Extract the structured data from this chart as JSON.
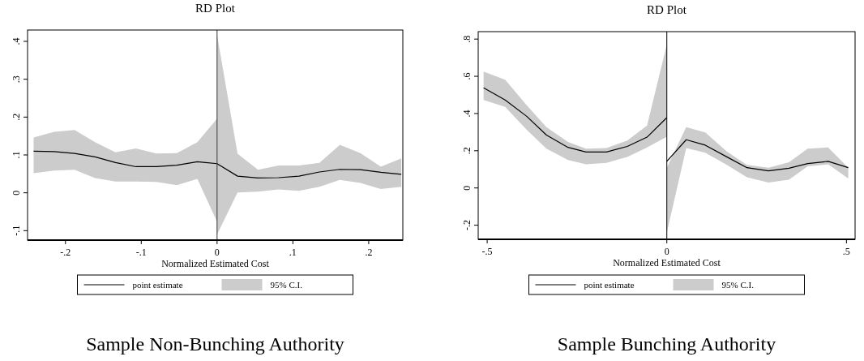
{
  "chart_data": [
    {
      "type": "line",
      "title": "RD Plot",
      "xlabel": "Normalized Estimated Cost",
      "annotations": [
        "95% C.I.",
        "Sample Non-Bunching Authority"
      ],
      "legend": "bottom",
      "xlim": [
        -0.25,
        0.245
      ],
      "ylim": [
        -0.125,
        0.43
      ],
      "xticks": [
        {
          "value": -0.2,
          "label": "-.2"
        },
        {
          "value": -0.1,
          "label": "-.1"
        },
        0,
        {
          "value": 0.1,
          "label": ".1"
        },
        {
          "value": 0.2,
          "label": ".2"
        }
      ],
      "yticks": [
        {
          "value": -0.1,
          "label": "-.1"
        },
        0,
        {
          "value": 0.1,
          "label": ".1"
        },
        {
          "value": 0.2,
          "label": ".2"
        },
        {
          "value": 0.3,
          "label": ".3"
        },
        {
          "value": 0.4,
          "label": ".4"
        }
      ],
      "ref_lines": [
        {
          "axis": "x",
          "value": 0,
          "color": "#333333"
        }
      ],
      "series": [
        {
          "name": "point estimate",
          "color": "#000000",
          "x": [
            -0.242,
            -0.215,
            -0.188,
            -0.161,
            -0.134,
            -0.107,
            -0.08,
            -0.053,
            -0.026,
            0
          ],
          "values": [
            0.11,
            0.109,
            0.104,
            0.095,
            0.08,
            0.069,
            0.069,
            0.073,
            0.082,
            0.077
          ],
          "lower": [
            0.052,
            0.059,
            0.061,
            0.039,
            0.03,
            0.03,
            0.029,
            0.02,
            0.037,
            -0.077
          ],
          "upper": [
            0.146,
            0.161,
            0.166,
            0.134,
            0.107,
            0.117,
            0.104,
            0.105,
            0.134,
            0.196
          ]
        },
        {
          "color": "#000000",
          "x": [
            0,
            0.027,
            0.054,
            0.081,
            0.108,
            0.135,
            0.162,
            0.189,
            0.216,
            0.243
          ],
          "values": [
            0.077,
            0.044,
            0.039,
            0.04,
            0.044,
            0.055,
            0.062,
            0.061,
            0.054,
            0.049
          ],
          "lower": [
            -0.11,
            0.001,
            0.003,
            0.009,
            0.005,
            0.016,
            0.034,
            0.026,
            0.01,
            0.016
          ],
          "upper": [
            0.417,
            0.103,
            0.061,
            0.072,
            0.072,
            0.079,
            0.127,
            0.105,
            0.069,
            0.091
          ]
        }
      ]
    },
    {
      "type": "line",
      "title": "RD Plot",
      "xlabel": "Normalized Estimated Cost",
      "annotations": [
        "95% C.I.",
        "Sample Bunching Authority"
      ],
      "legend": "bottom",
      "xlim": [
        -0.525,
        0.524
      ],
      "ylim": [
        -0.276,
        0.84
      ],
      "xticks": [
        {
          "value": -0.5,
          "label": "-.5"
        },
        0,
        {
          "value": 0.5,
          "label": ".5"
        }
      ],
      "yticks": [
        {
          "value": -0.2,
          "label": "-.2"
        },
        0,
        {
          "value": 0.2,
          "label": ".2"
        },
        {
          "value": 0.4,
          "label": ".4"
        },
        {
          "value": 0.6,
          "label": ".6"
        },
        {
          "value": 0.8,
          "label": ".8"
        }
      ],
      "ref_lines": [
        {
          "axis": "x",
          "value": 0,
          "color": "#000000"
        }
      ],
      "series": [
        {
          "name": "point estimate",
          "color": "#000000",
          "x": [
            -0.51,
            -0.45,
            -0.39,
            -0.335,
            -0.275,
            -0.225,
            -0.168,
            -0.11,
            -0.055,
            0
          ],
          "values": [
            0.538,
            0.473,
            0.385,
            0.284,
            0.218,
            0.193,
            0.193,
            0.223,
            0.273,
            0.378
          ],
          "lower": [
            0.473,
            0.436,
            0.313,
            0.211,
            0.15,
            0.127,
            0.135,
            0.167,
            0.218,
            0.276
          ],
          "upper": [
            0.625,
            0.582,
            0.444,
            0.327,
            0.247,
            0.211,
            0.214,
            0.255,
            0.335,
            0.771
          ]
        },
        {
          "color": "#000000",
          "x": [
            0,
            0.054,
            0.107,
            0.167,
            0.223,
            0.283,
            0.34,
            0.392,
            0.449,
            0.505
          ],
          "values": [
            0.143,
            0.259,
            0.23,
            0.167,
            0.109,
            0.092,
            0.106,
            0.131,
            0.143,
            0.109
          ],
          "lower": [
            -0.24,
            0.214,
            0.189,
            0.124,
            0.058,
            0.029,
            0.044,
            0.116,
            0.127,
            0.051
          ],
          "upper": [
            0.109,
            0.327,
            0.298,
            0.196,
            0.124,
            0.109,
            0.138,
            0.211,
            0.218,
            0.109
          ]
        }
      ]
    }
  ]
}
